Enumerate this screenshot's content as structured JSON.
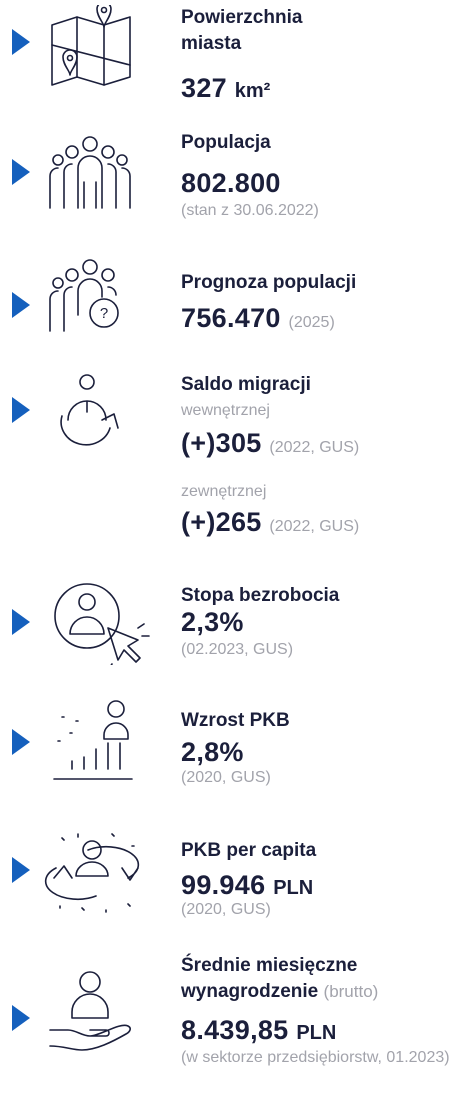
{
  "items": [
    {
      "title": "Powierzchnia miasta",
      "value": "327",
      "unit": "km²"
    },
    {
      "title": "Populacja",
      "value": "802.800",
      "note": "(stan z 30.06.2022)"
    },
    {
      "title": "Prognoza populacji",
      "value": "756.470",
      "note": "(2025)"
    },
    {
      "title": "Saldo migracji",
      "entries": [
        {
          "label": "wewnętrznej",
          "value": "(+)305",
          "note": "(2022, GUS)"
        },
        {
          "label": "zewnętrznej",
          "value": "(+)265",
          "note": "(2022, GUS)"
        }
      ]
    },
    {
      "title": "Stopa bezrobocia",
      "value": "2,3%",
      "note": "(02.2023, GUS)"
    },
    {
      "title": "Wzrost PKB",
      "value": "2,8%",
      "note": "(2020, GUS)"
    },
    {
      "title": "PKB per capita",
      "value": "99.946",
      "unit": "PLN",
      "note": "(2020, GUS)"
    },
    {
      "title": "Średnie miesięczne wynagrodzenie",
      "title_note": "(brutto)",
      "value": "8.439,85",
      "unit": "PLN",
      "note": "(w sektorze przedsiębiorstw, 01.2023)"
    }
  ]
}
